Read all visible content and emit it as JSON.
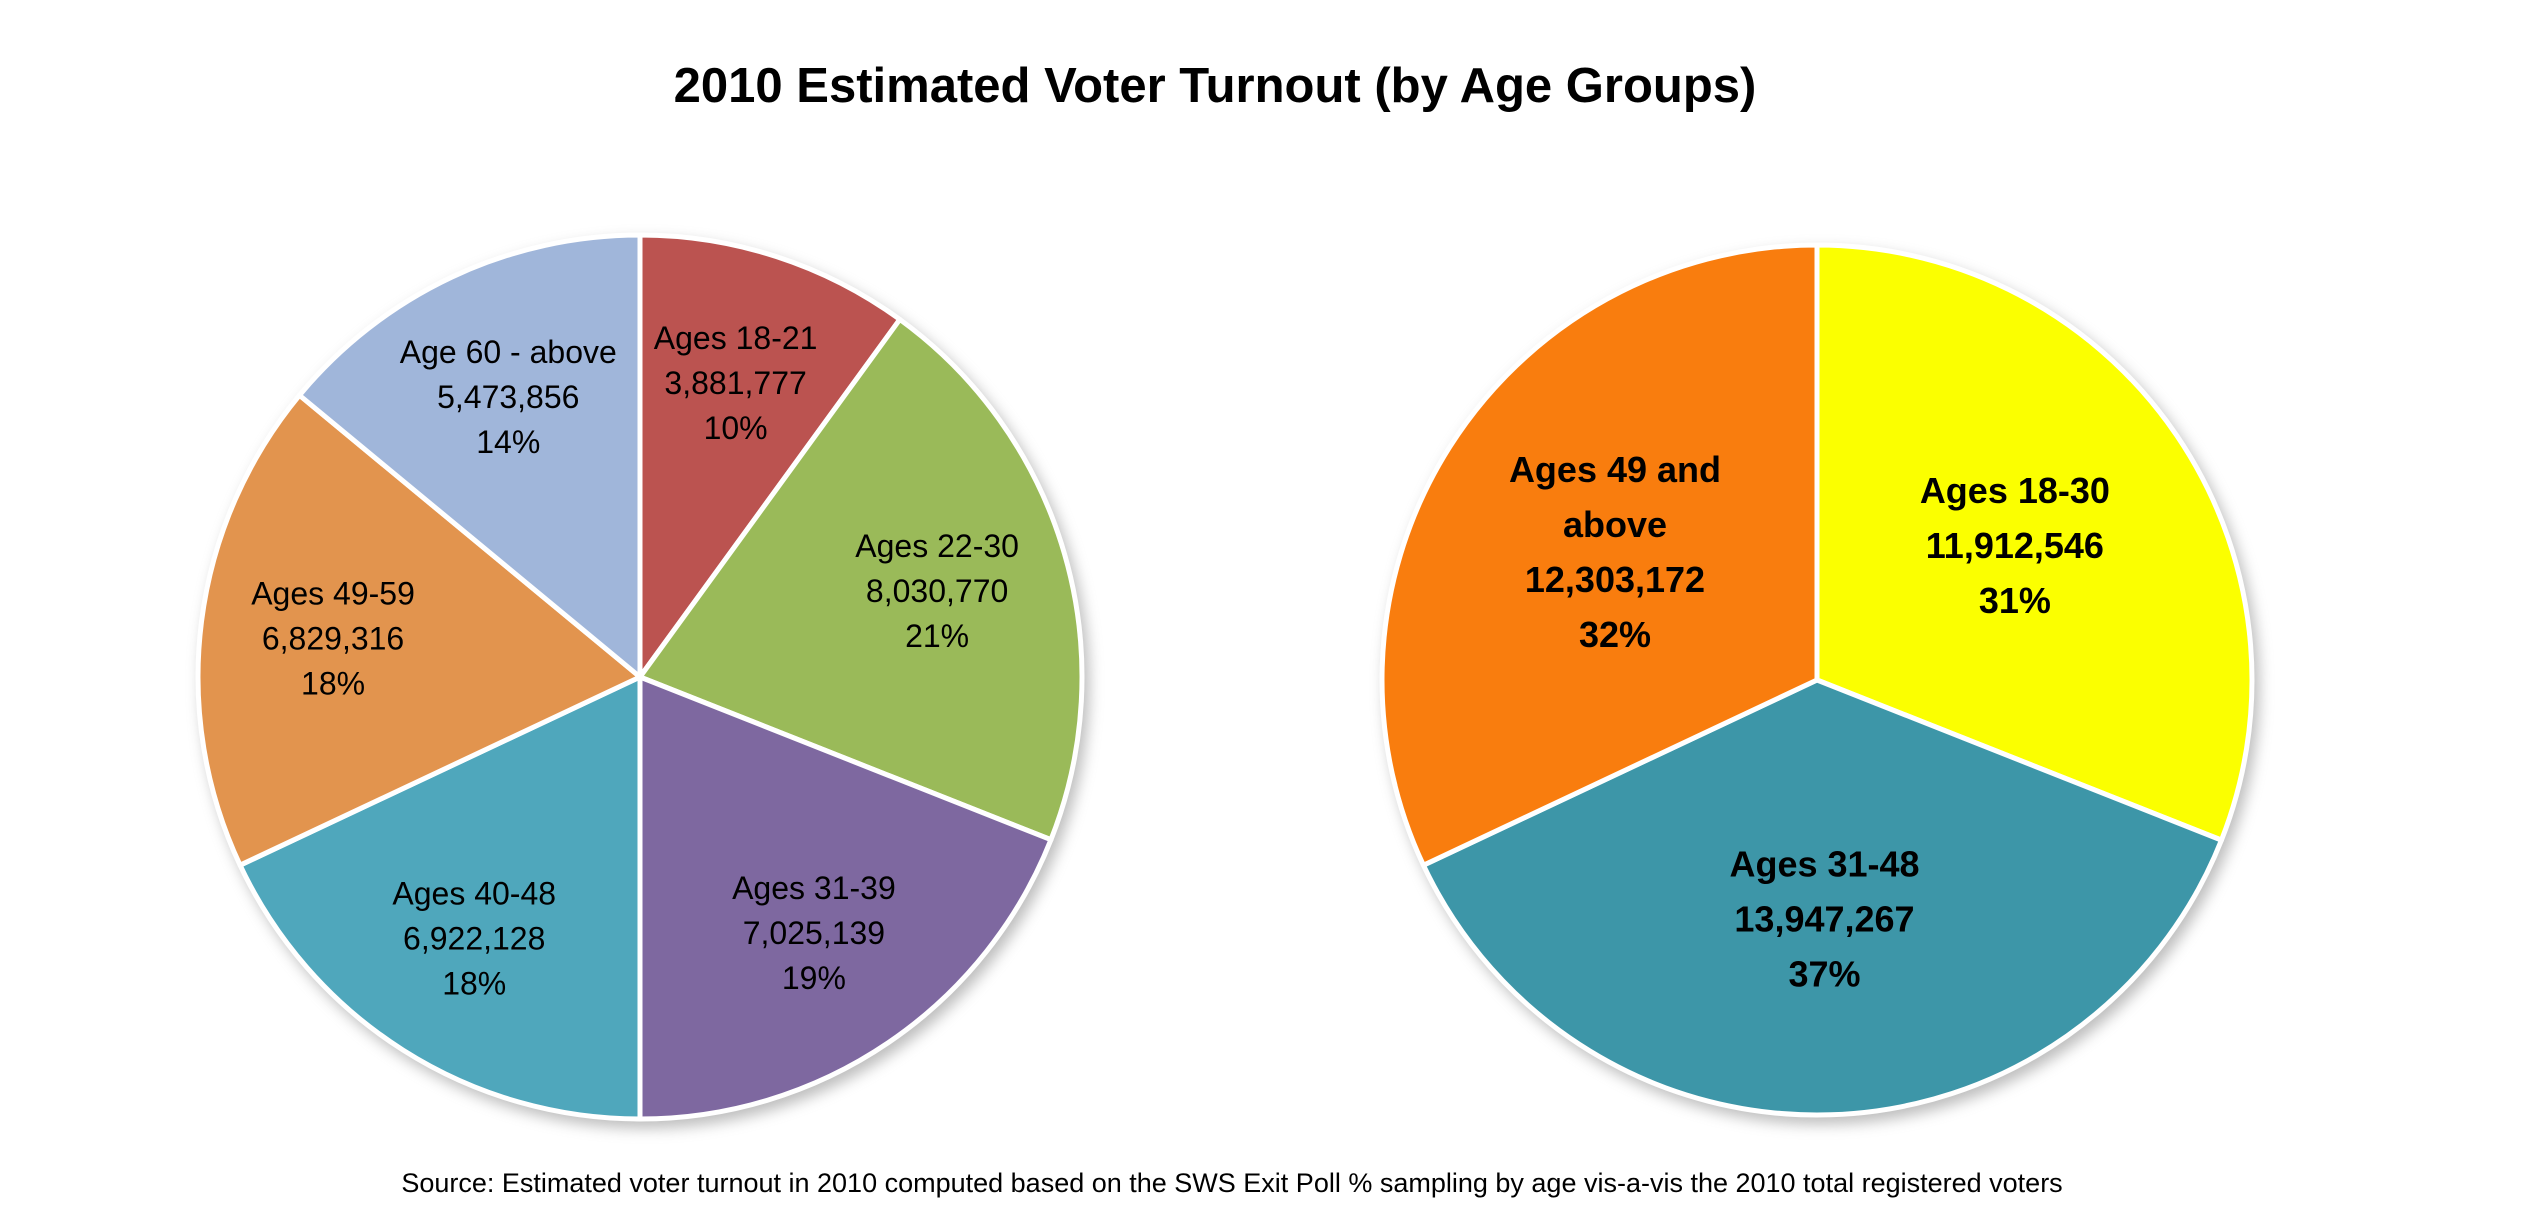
{
  "title": "2010 Estimated Voter Turnout (by Age Groups)",
  "source": "Source: Estimated voter turnout in 2010 computed based on the SWS Exit Poll % sampling by age vis-a-vis the 2010 total registered voters",
  "colors": {
    "background": "#FFFFFF",
    "text": "#000000",
    "slice_border": "#FFFFFF"
  },
  "chart_data": [
    {
      "type": "pie",
      "name": "voter-turnout-by-detailed-age-group",
      "direction": "clockwise",
      "start_angle_deg": 0,
      "labels_position": "inside",
      "legend": "none",
      "slices": [
        {
          "label": "Ages 18-21",
          "value": 3881777,
          "value_label": "3,881,777",
          "pct": 10,
          "pct_label": "10%",
          "color": "#BB5350",
          "label_lines": [
            "Ages 18-21",
            "3,881,777",
            "10%"
          ]
        },
        {
          "label": "Ages 22-30",
          "value": 8030770,
          "value_label": "8,030,770",
          "pct": 21,
          "pct_label": "21%",
          "color": "#9ABA59",
          "label_lines": [
            "Ages 22-30",
            "8,030,770",
            "21%"
          ]
        },
        {
          "label": "Ages 31-39",
          "value": 7025139,
          "value_label": "7,025,139",
          "pct": 19,
          "pct_label": "19%",
          "color": "#7E68A0",
          "label_lines": [
            "Ages 31-39",
            "7,025,139",
            "19%"
          ]
        },
        {
          "label": "Ages 40-48",
          "value": 6922128,
          "value_label": "6,922,128",
          "pct": 18,
          "pct_label": "18%",
          "color": "#4FA7BC",
          "label_lines": [
            "Ages 40-48",
            "6,922,128",
            "18%"
          ]
        },
        {
          "label": "Ages 49-59",
          "value": 6829316,
          "value_label": "6,829,316",
          "pct": 18,
          "pct_label": "18%",
          "color": "#E2944E",
          "label_lines": [
            "Ages 49-59",
            "6,829,316",
            "18%"
          ]
        },
        {
          "label": "Age 60 - above",
          "value": 5473856,
          "value_label": "5,473,856",
          "pct": 14,
          "pct_label": "14%",
          "color": "#A0B6DA",
          "label_lines": [
            "Age 60 - above",
            "5,473,856",
            "14%"
          ]
        }
      ]
    },
    {
      "type": "pie",
      "name": "voter-turnout-by-broad-age-group",
      "direction": "clockwise",
      "start_angle_deg": 0,
      "labels_position": "inside",
      "legend": "none",
      "slices": [
        {
          "label": "Ages 18-30",
          "value": 11912546,
          "value_label": "11,912,546",
          "pct": 31,
          "pct_label": "31%",
          "color": "#FBFF00",
          "label_lines": [
            "Ages 18-30",
            "11,912,546",
            "31%"
          ]
        },
        {
          "label": "Ages 31-48",
          "value": 13947267,
          "value_label": "13,947,267",
          "pct": 37,
          "pct_label": "37%",
          "color": "#3D96A8",
          "label_lines": [
            "Ages 31-48",
            "13,947,267",
            "37%"
          ]
        },
        {
          "label": "Ages 49 and above",
          "value": 12303172,
          "value_label": "12,303,172",
          "pct": 32,
          "pct_label": "32%",
          "color": "#F97D0E",
          "label_lines": [
            "Ages 49 and",
            "above",
            "12,303,172",
            "32%"
          ]
        }
      ]
    }
  ]
}
